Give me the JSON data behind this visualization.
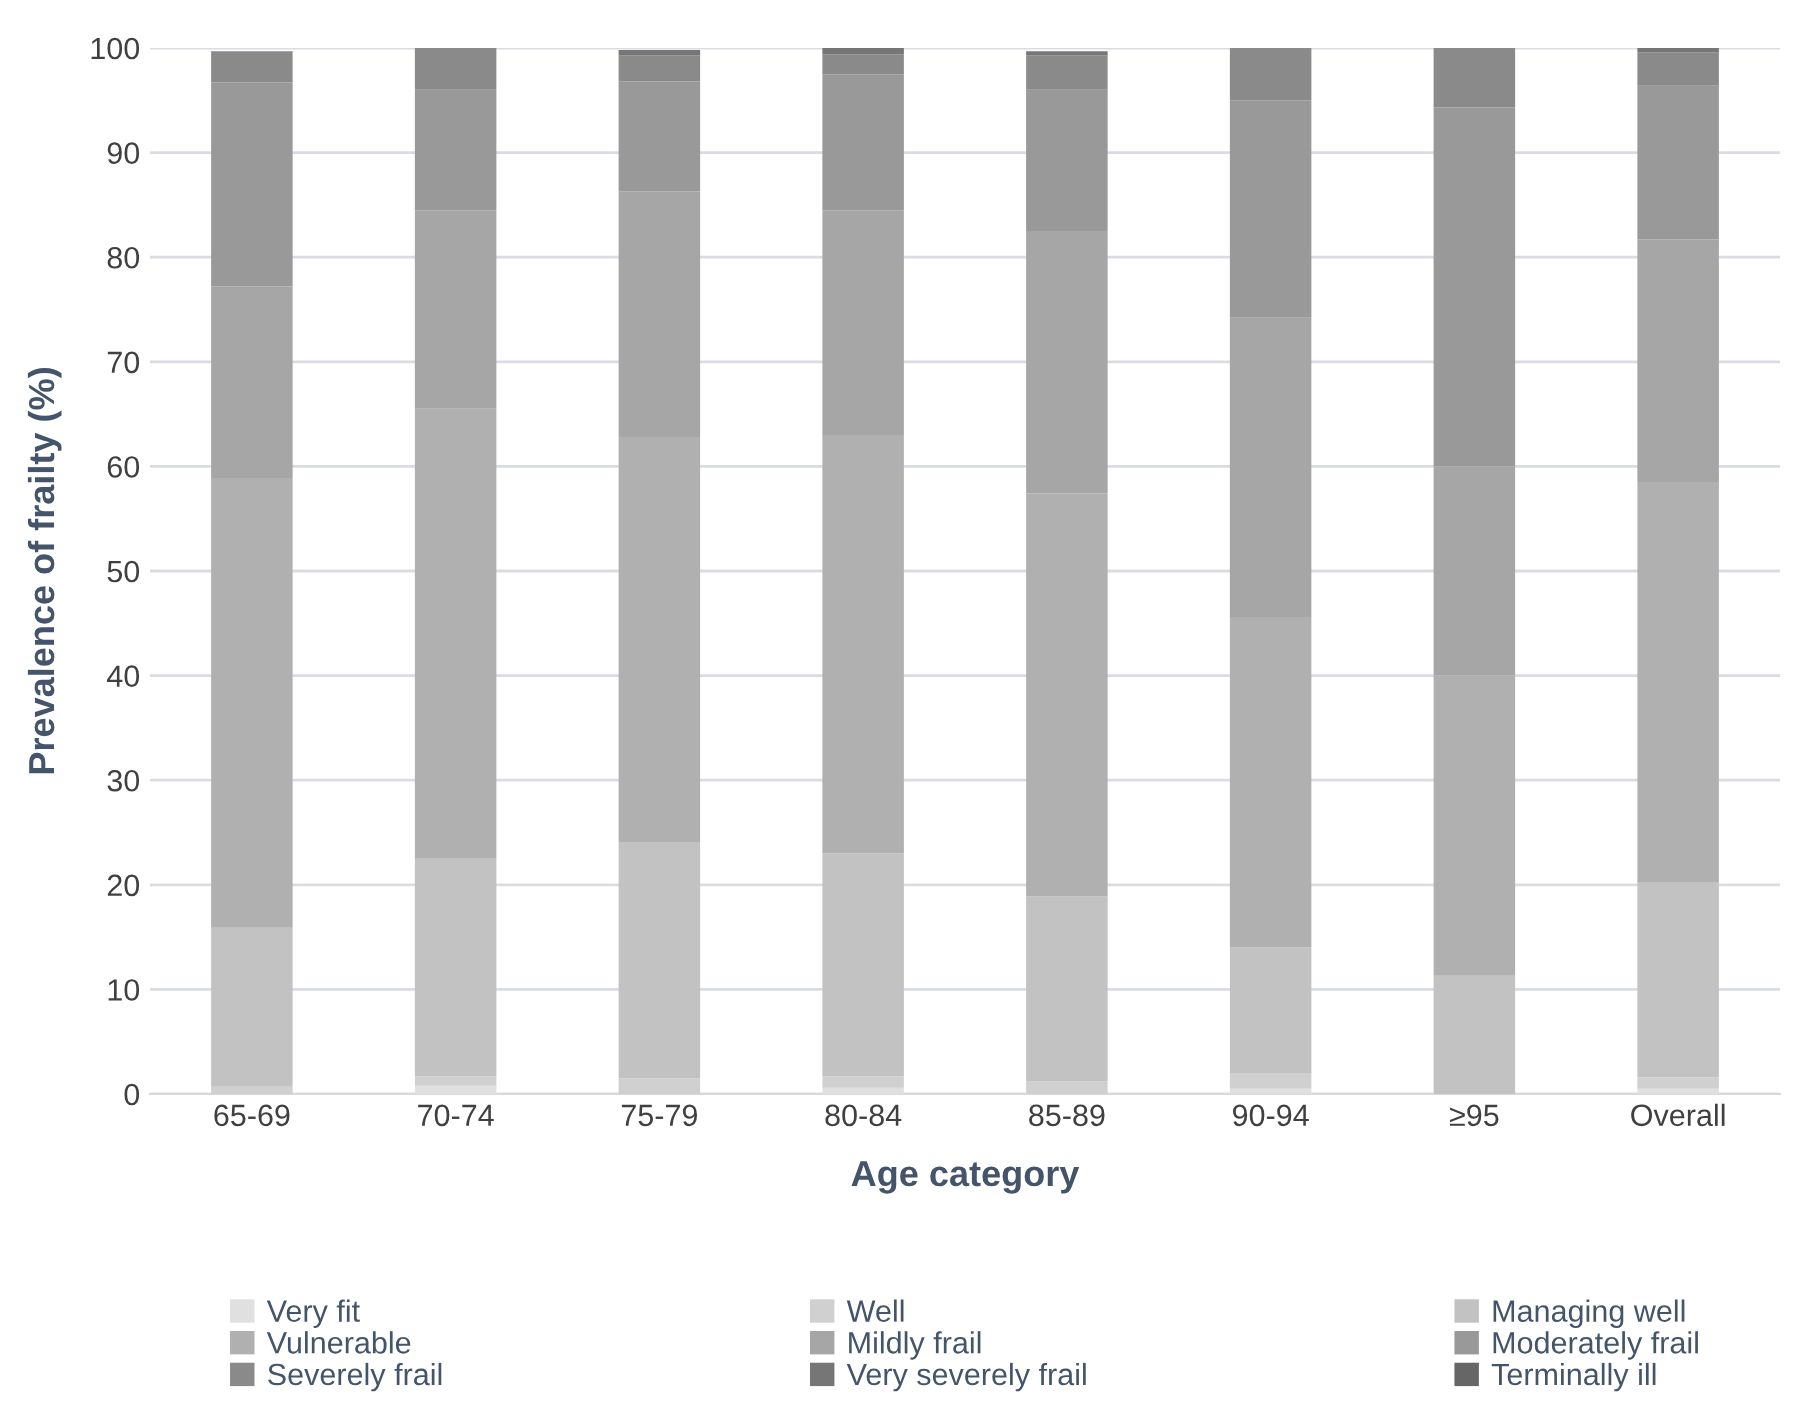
{
  "chart_data": {
    "type": "bar",
    "stacked": true,
    "xlabel": "Age category",
    "ylabel": "Prevalence of frailty (%)",
    "categories": [
      "65-69",
      "70-74",
      "75-79",
      "80-84",
      "85-89",
      "90-94",
      "≥95",
      "Overall"
    ],
    "series": [
      {
        "name": "Very fit",
        "color": "#e0e0e0",
        "values": [
          null,
          0.8,
          null,
          0.6,
          null,
          0.5,
          0,
          0.5
        ]
      },
      {
        "name": "Well",
        "color": "#d0d0d0",
        "values": [
          0.7,
          0.9,
          1.5,
          1.1,
          1.2,
          1.5,
          0,
          1.1
        ]
      },
      {
        "name": "Managing well",
        "color": "#c2c2c2",
        "values": [
          15.2,
          20.8,
          22.6,
          21.3,
          17.7,
          12,
          11.3,
          18.6
        ]
      },
      {
        "name": "Vulnerable",
        "color": "#b0b0b0",
        "values": [
          43,
          43,
          38.7,
          40,
          38.5,
          31.6,
          28.7,
          38.3
        ]
      },
      {
        "name": "Mildly frail",
        "color": "#a6a6a6",
        "values": [
          18.3,
          19,
          23.5,
          21.5,
          25.1,
          28.6,
          20,
          23.2
        ]
      },
      {
        "name": "Moderately frail",
        "color": "#999999",
        "values": [
          19.5,
          11.5,
          10.5,
          13,
          13.5,
          20.8,
          34.3,
          14.7
        ]
      },
      {
        "name": "Severely frail",
        "color": "#8a8a8a",
        "values": [
          3,
          4,
          2.5,
          1.9,
          3.3,
          5,
          5.7,
          3.2
        ]
      },
      {
        "name": "Very severely frail",
        "color": "#767676",
        "values": [
          0,
          0,
          0.5,
          0.6,
          0.4,
          0,
          0,
          0.4
        ]
      },
      {
        "name": "Terminally ill",
        "color": "#666666",
        "values": [
          0,
          0,
          0,
          0,
          0,
          0,
          0,
          0
        ]
      }
    ],
    "ylim": [
      0,
      100
    ],
    "yticks": [
      0,
      10,
      20,
      30,
      40,
      50,
      60,
      70,
      80,
      90,
      100
    ],
    "grid": "y",
    "legend": "bottom"
  }
}
